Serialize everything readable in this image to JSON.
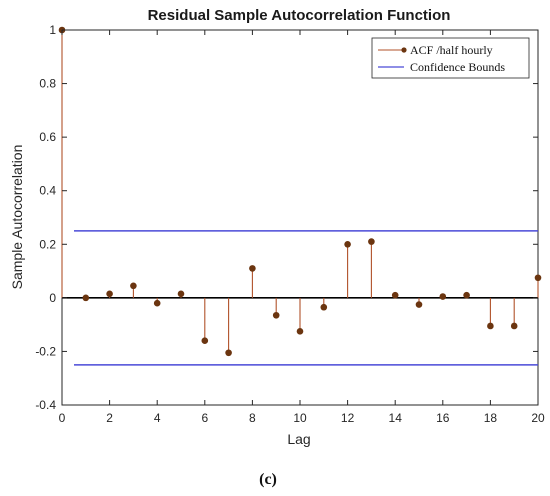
{
  "chart_data": {
    "type": "stem",
    "title": "Residual Sample Autocorrelation Function",
    "xlabel": "Lag",
    "ylabel": "Sample Autocorrelation",
    "xlim": [
      0,
      20
    ],
    "ylim": [
      -0.4,
      1
    ],
    "xticks": [
      0,
      2,
      4,
      6,
      8,
      10,
      12,
      14,
      16,
      18,
      20
    ],
    "yticks": [
      -0.4,
      -0.2,
      0,
      0.2,
      0.4,
      0.6,
      0.8,
      1
    ],
    "grid": false,
    "legend_position": "top-right",
    "series": [
      {
        "name": "ACF /half hourly",
        "color": "#b0522a",
        "marker_color": "#6b3510",
        "x": [
          0,
          1,
          2,
          3,
          4,
          5,
          6,
          7,
          8,
          9,
          10,
          11,
          12,
          13,
          14,
          15,
          16,
          17,
          18,
          19,
          20
        ],
        "y": [
          1.0,
          0.0,
          0.015,
          0.045,
          -0.02,
          0.015,
          -0.16,
          -0.205,
          0.11,
          -0.065,
          -0.125,
          -0.035,
          0.2,
          0.21,
          0.01,
          -0.025,
          0.005,
          0.01,
          -0.105,
          -0.105,
          0.075
        ]
      },
      {
        "name": "Confidence Bounds",
        "color": "#4a4ad8",
        "values": [
          0.25,
          -0.25
        ]
      }
    ],
    "zero_line_color": "#000000"
  },
  "caption": "(c)"
}
